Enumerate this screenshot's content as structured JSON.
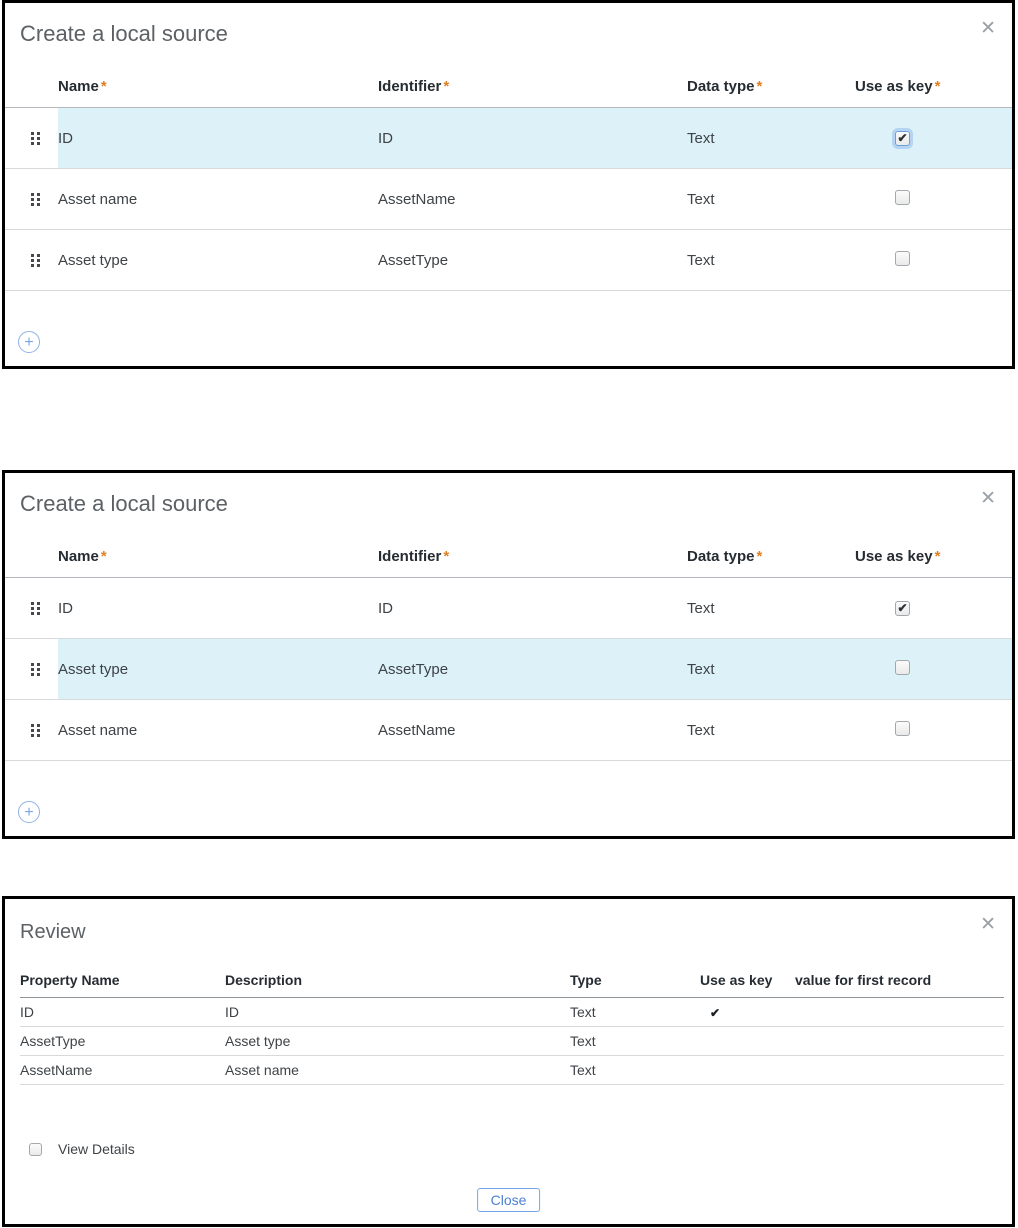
{
  "icons": {
    "close": "✕",
    "add": "+",
    "check": "✔"
  },
  "colors": {
    "accent_orange": "#e08021",
    "row_highlight": "#ddf1f9",
    "action_blue": "#7da4e8",
    "close_button_blue": "#4c7fd1",
    "panel_border": "#000000"
  },
  "create_source_dialogs": [
    {
      "title": "Create a local source",
      "columns": {
        "name": "Name",
        "identifier": "Identifier",
        "data_type": "Data type",
        "use_as_key": "Use as key",
        "required_marker": "*"
      },
      "rows": [
        {
          "name": "ID",
          "identifier": "ID",
          "data_type": "Text",
          "use_as_key": true,
          "highlighted": true,
          "checkbox_focused": true
        },
        {
          "name": "Asset name",
          "identifier": "AssetName",
          "data_type": "Text",
          "use_as_key": false,
          "highlighted": false,
          "checkbox_focused": false
        },
        {
          "name": "Asset type",
          "identifier": "AssetType",
          "data_type": "Text",
          "use_as_key": false,
          "highlighted": false,
          "checkbox_focused": false
        }
      ]
    },
    {
      "title": "Create a local source",
      "columns": {
        "name": "Name",
        "identifier": "Identifier",
        "data_type": "Data type",
        "use_as_key": "Use as key",
        "required_marker": "*"
      },
      "rows": [
        {
          "name": "ID",
          "identifier": "ID",
          "data_type": "Text",
          "use_as_key": true,
          "highlighted": false,
          "checkbox_focused": false
        },
        {
          "name": "Asset type",
          "identifier": "AssetType",
          "data_type": "Text",
          "use_as_key": false,
          "highlighted": true,
          "checkbox_focused": false
        },
        {
          "name": "Asset name",
          "identifier": "AssetName",
          "data_type": "Text",
          "use_as_key": false,
          "highlighted": false,
          "checkbox_focused": false
        }
      ]
    }
  ],
  "review_dialog": {
    "title": "Review",
    "columns": {
      "property_name": "Property Name",
      "description": "Description",
      "type": "Type",
      "use_as_key": "Use as key",
      "value_first": "value for first record"
    },
    "rows": [
      {
        "property_name": "ID",
        "description": "ID",
        "type": "Text",
        "use_as_key": true,
        "value_for_first_record": ""
      },
      {
        "property_name": "AssetType",
        "description": "Asset type",
        "type": "Text",
        "use_as_key": false,
        "value_for_first_record": ""
      },
      {
        "property_name": "AssetName",
        "description": "Asset name",
        "type": "Text",
        "use_as_key": false,
        "value_for_first_record": ""
      }
    ],
    "view_details_label": "View Details",
    "view_details_checked": false,
    "close_button_label": "Close"
  }
}
